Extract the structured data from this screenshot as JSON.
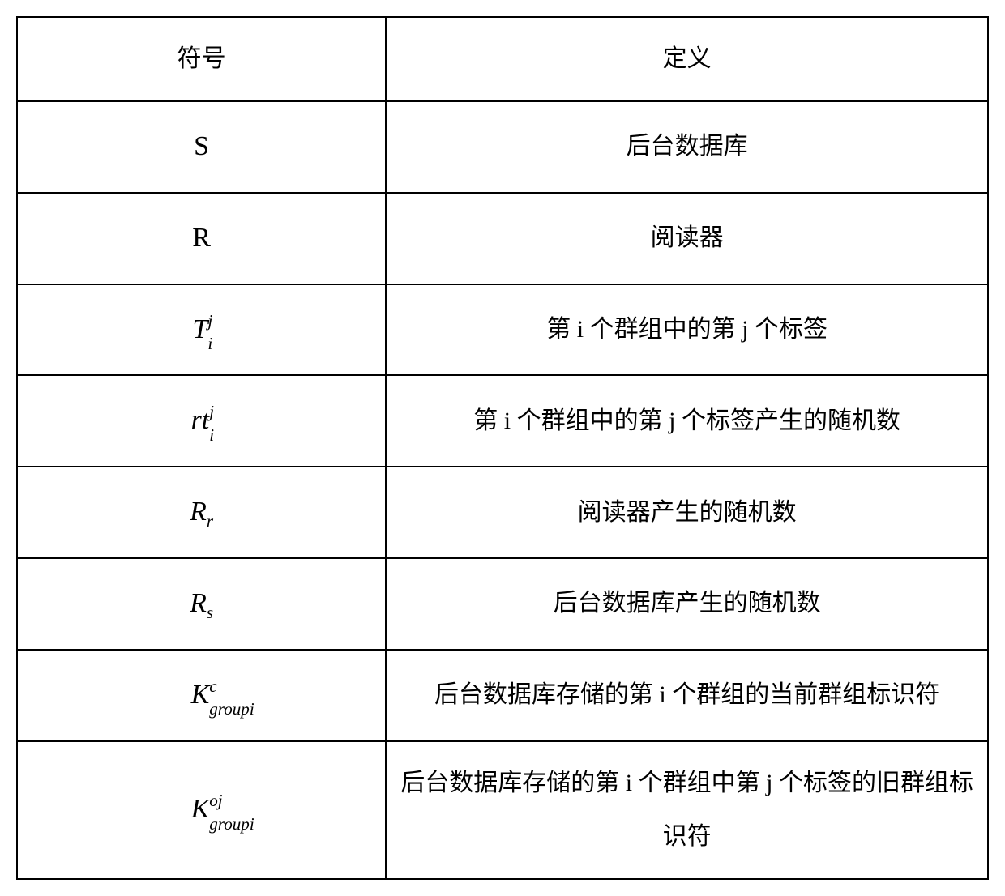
{
  "table": {
    "columns": [
      "符号",
      "定义"
    ],
    "border_color": "#000000",
    "background_color": "#ffffff",
    "text_color": "#000000",
    "header_fontsize": 30,
    "body_fontsize": 30,
    "symbol_font": "Times New Roman italic",
    "def_font": "SimSun",
    "col_widths": [
      "38%",
      "62%"
    ],
    "rows": [
      {
        "symbol": {
          "base": "S",
          "sub": "",
          "sup": "",
          "style": "upright"
        },
        "definition": "后台数据库"
      },
      {
        "symbol": {
          "base": "R",
          "sub": "",
          "sup": "",
          "style": "upright"
        },
        "definition": "阅读器"
      },
      {
        "symbol": {
          "base": "T",
          "sub": "i",
          "sup": "j",
          "style": "italic"
        },
        "definition": "第 i 个群组中的第 j 个标签"
      },
      {
        "symbol": {
          "base": "rt",
          "sub": "i",
          "sup": "j",
          "style": "italic"
        },
        "definition": "第 i 个群组中的第 j 个标签产生的随机数"
      },
      {
        "symbol": {
          "base": "R",
          "sub": "r",
          "sup": "",
          "style": "italic"
        },
        "definition": "阅读器产生的随机数"
      },
      {
        "symbol": {
          "base": "R",
          "sub": "s",
          "sup": "",
          "style": "italic"
        },
        "definition": "后台数据库产生的随机数"
      },
      {
        "symbol": {
          "base": "K",
          "sub": "groupi",
          "sup": "c",
          "style": "italic"
        },
        "definition": "后台数据库存储的第 i 个群组的当前群组标识符"
      },
      {
        "symbol": {
          "base": "K",
          "sub": "groupi",
          "sup": "oj",
          "style": "italic"
        },
        "definition": "后台数据库存储的第 i 个群组中第 j 个标签的旧群组标识符"
      }
    ]
  }
}
